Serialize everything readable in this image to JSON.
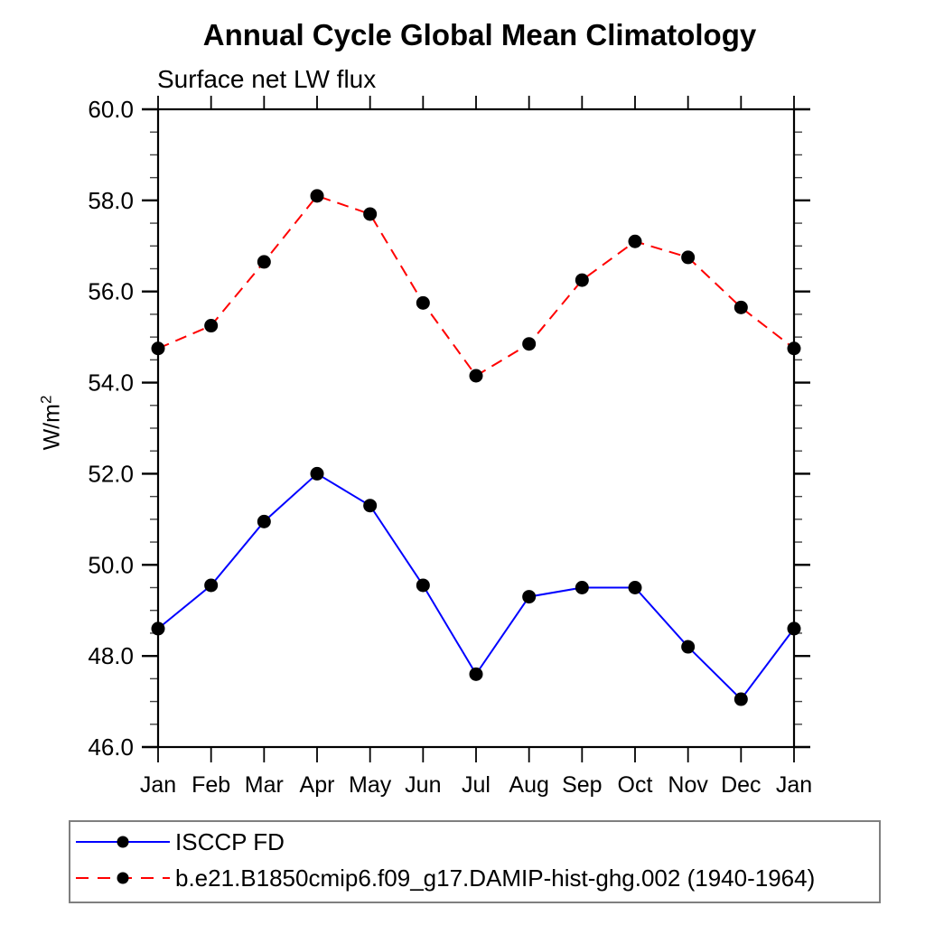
{
  "chart_data": {
    "type": "line",
    "title": "Annual Cycle Global Mean Climatology",
    "subtitle": "Surface net LW flux",
    "ylabel": "W/m^2",
    "ylabel_base": "W/m",
    "ylabel_sup": "2",
    "categories": [
      "Jan",
      "Feb",
      "Mar",
      "Apr",
      "May",
      "Jun",
      "Jul",
      "Aug",
      "Sep",
      "Oct",
      "Nov",
      "Dec",
      "Jan"
    ],
    "ylim": [
      46.0,
      60.0
    ],
    "ytick_major_interval": 2.0,
    "ytick_minor_interval": 0.5,
    "ytick_labels": [
      "46.0",
      "48.0",
      "50.0",
      "52.0",
      "54.0",
      "56.0",
      "58.0",
      "60.0"
    ],
    "grid": false,
    "legend_position": "bottom-left-box",
    "axis_color": "#000000",
    "marker_color": "#000000",
    "series": [
      {
        "name": "ISCCP FD",
        "color": "#0000ff",
        "line_style": "solid",
        "marker": "filled-circle",
        "values": [
          48.6,
          49.55,
          50.95,
          52.0,
          51.3,
          49.55,
          47.6,
          49.3,
          49.5,
          49.5,
          48.2,
          47.05,
          48.6
        ]
      },
      {
        "name": "b.e21.B1850cmip6.f09_g17.DAMIP-hist-ghg.002 (1940-1964)",
        "color": "#ff0000",
        "line_style": "dashed",
        "marker": "filled-circle",
        "values": [
          54.75,
          55.25,
          56.65,
          58.1,
          57.7,
          55.75,
          54.15,
          54.85,
          56.25,
          57.1,
          56.75,
          55.65,
          54.75
        ]
      }
    ]
  }
}
